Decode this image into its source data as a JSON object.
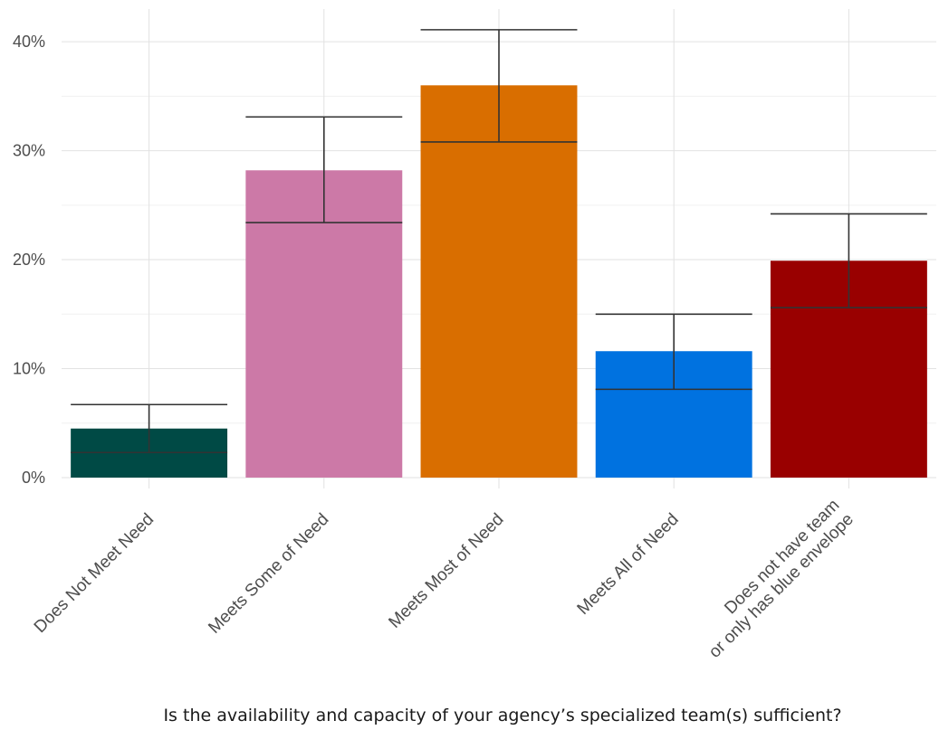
{
  "chart_data": {
    "type": "bar",
    "categories": [
      "Does Not Meet Need",
      "Meets Some of Need",
      "Meets Most of Need",
      "Meets All of Need",
      "Does not have team\nor only has blue envelope"
    ],
    "values": [
      4.5,
      28.2,
      36.0,
      11.6,
      19.9
    ],
    "error_low": [
      2.3,
      23.4,
      30.8,
      8.1,
      15.6
    ],
    "error_high": [
      6.7,
      33.1,
      41.1,
      15.0,
      24.2
    ],
    "colors": [
      "#004a45",
      "#cc79a7",
      "#d96e00",
      "#0072e0",
      "#990000"
    ],
    "y_unit": "%",
    "ylim": [
      -1,
      43
    ],
    "yticks": [
      0,
      10,
      20,
      30,
      40
    ],
    "ytick_labels": [
      "0%",
      "10%",
      "20%",
      "30%",
      "40%"
    ],
    "minor_gridlines": [
      5,
      15,
      25,
      35
    ],
    "xlabel": "Is the availability and capacity of your agency’s specialized team(s) sufficient?",
    "ylabel": "",
    "title": "",
    "grid": true,
    "legend": "none"
  }
}
